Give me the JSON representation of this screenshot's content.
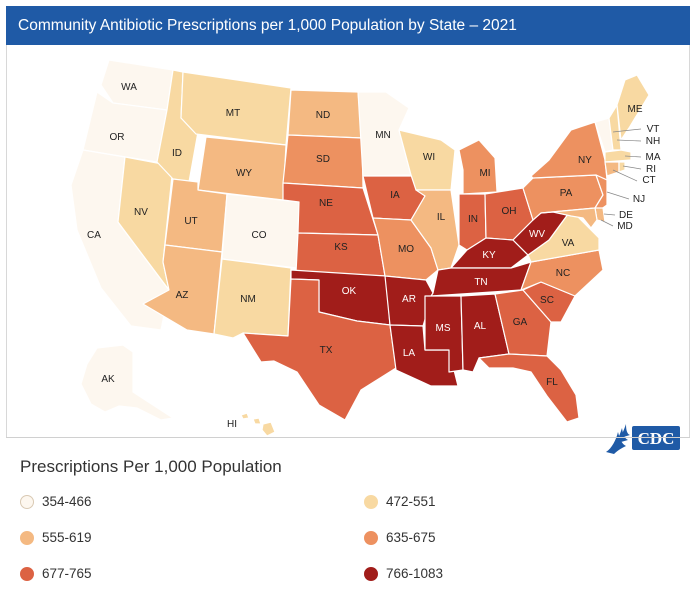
{
  "title": "Community Antibiotic Prescriptions per 1,000 Population by State – 2021",
  "legend": {
    "title": "Prescriptions Per 1,000 Population",
    "items": [
      {
        "label": "354-466",
        "color": "#fdf7ef"
      },
      {
        "label": "472-551",
        "color": "#f8d9a2"
      },
      {
        "label": "555-619",
        "color": "#f4b982"
      },
      {
        "label": "635-675",
        "color": "#ed9160"
      },
      {
        "label": "677-765",
        "color": "#dc6243"
      },
      {
        "label": "766-1083",
        "color": "#a11d1a"
      }
    ]
  },
  "logo": {
    "text": "CDC",
    "icon": "hhs-eagle-icon"
  },
  "states": {
    "WA": {
      "bin": 0
    },
    "OR": {
      "bin": 0
    },
    "CA": {
      "bin": 0
    },
    "NV": {
      "bin": 1
    },
    "ID": {
      "bin": 1
    },
    "MT": {
      "bin": 1
    },
    "WY": {
      "bin": 2
    },
    "UT": {
      "bin": 2
    },
    "AZ": {
      "bin": 2
    },
    "CO": {
      "bin": 0
    },
    "NM": {
      "bin": 1
    },
    "ND": {
      "bin": 2
    },
    "SD": {
      "bin": 3
    },
    "NE": {
      "bin": 4
    },
    "KS": {
      "bin": 4
    },
    "OK": {
      "bin": 5
    },
    "TX": {
      "bin": 4
    },
    "MN": {
      "bin": 0
    },
    "IA": {
      "bin": 4
    },
    "MO": {
      "bin": 3
    },
    "AR": {
      "bin": 5
    },
    "LA": {
      "bin": 5
    },
    "WI": {
      "bin": 1
    },
    "IL": {
      "bin": 2
    },
    "MI": {
      "bin": 3
    },
    "IN": {
      "bin": 4
    },
    "OH": {
      "bin": 4
    },
    "KY": {
      "bin": 5
    },
    "TN": {
      "bin": 5
    },
    "MS": {
      "bin": 5
    },
    "AL": {
      "bin": 5
    },
    "GA": {
      "bin": 4
    },
    "FL": {
      "bin": 4
    },
    "SC": {
      "bin": 4
    },
    "NC": {
      "bin": 3
    },
    "VA": {
      "bin": 1
    },
    "WV": {
      "bin": 5
    },
    "PA": {
      "bin": 3
    },
    "NY": {
      "bin": 3
    },
    "NJ": {
      "bin": 3
    },
    "DE": {
      "bin": 2
    },
    "MD": {
      "bin": 2
    },
    "CT": {
      "bin": 2
    },
    "RI": {
      "bin": 1
    },
    "MA": {
      "bin": 1
    },
    "VT": {
      "bin": 0
    },
    "NH": {
      "bin": 1
    },
    "ME": {
      "bin": 1
    },
    "AK": {
      "bin": 0
    },
    "HI": {
      "bin": 1
    }
  }
}
